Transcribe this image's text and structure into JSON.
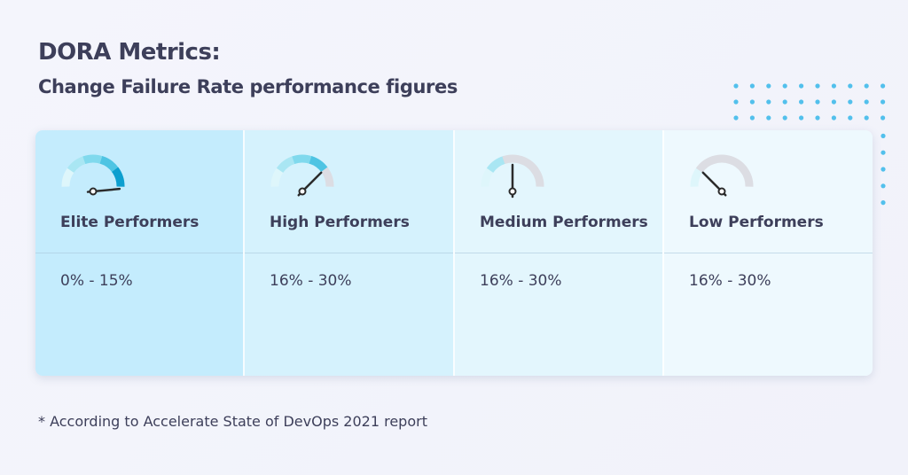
{
  "header": {
    "title": "DORA Metrics:",
    "subtitle": "Change Failure Rate performance figures"
  },
  "colors": {
    "text": "#3d3f5a",
    "segments": [
      "#def6fb",
      "#a9e6f3",
      "#80d9ed",
      "#4ec4e3",
      "#0d9fcf"
    ],
    "inactive_segment": "#dcdde3",
    "needle": "#2b2b2b",
    "dots": "#52c0ec"
  },
  "performers": [
    {
      "label": "Elite Performers",
      "value": "0% - 15%",
      "gauge_filled_segments": 5,
      "gauge_level": 0.97,
      "background": "#c4ecfd"
    },
    {
      "label": "High Performers",
      "value": "16% - 30%",
      "gauge_filled_segments": 4,
      "gauge_level": 0.75,
      "background": "#d5f2fd"
    },
    {
      "label": "Medium Performers",
      "value": "16% - 30%",
      "gauge_filled_segments": 2,
      "gauge_level": 0.5,
      "background": "#e3f6fd"
    },
    {
      "label": "Low Performers",
      "value": "16% - 30%",
      "gauge_filled_segments": 1,
      "gauge_level": 0.25,
      "background": "#eef9fe"
    }
  ],
  "footnote": "* According to Accelerate State of DevOps 2021 report"
}
